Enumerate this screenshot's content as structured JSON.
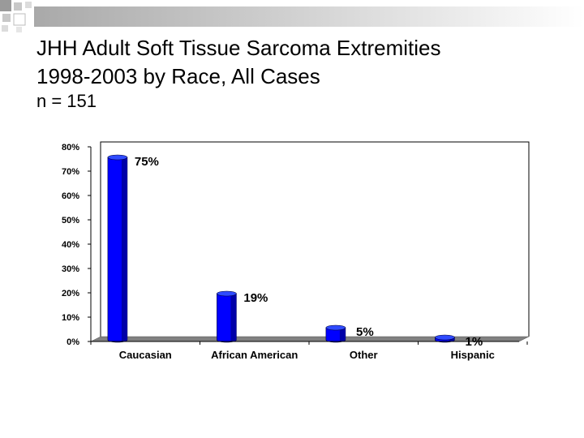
{
  "slide": {
    "title_lines": [
      "JHH Adult Soft Tissue Sarcoma Extremities",
      "1998-2003 by Race, All Cases"
    ],
    "subtitle": "n = 151"
  },
  "colors": {
    "bar_front": "#0000ff",
    "bar_side": "#0000a8",
    "bar_top": "#2f4bff",
    "floor": "#808080",
    "band_start": "#a9a9a9"
  },
  "chart_data": {
    "type": "bar",
    "categories": [
      "Caucasian",
      "African American",
      "Other",
      "Hispanic"
    ],
    "values": [
      75,
      19,
      5,
      1
    ],
    "data_labels": [
      "75%",
      "19%",
      "5%",
      "1%"
    ],
    "y_ticks": [
      "0%",
      "10%",
      "20%",
      "30%",
      "40%",
      "50%",
      "60%",
      "70%",
      "80%"
    ],
    "ylim": [
      0,
      80
    ],
    "unit": "%",
    "grid": false,
    "legend": "none",
    "style": "3d-cylinder"
  }
}
